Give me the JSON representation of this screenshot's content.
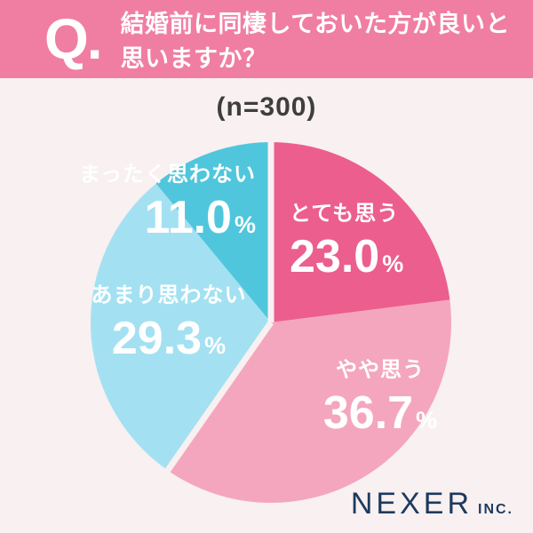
{
  "header": {
    "q_label": "Q.",
    "question": "結婚前に同棲しておいた方が良いと思いますか？",
    "bg_color": "#F07EA3",
    "text_color": "#FFFFFF"
  },
  "sample_label": "(n=300)",
  "chart_data": {
    "type": "pie",
    "title": "結婚前に同棲しておいた方が良いと思いますか？",
    "sample_size": 300,
    "start_angle_deg": 0,
    "direction": "clockwise",
    "divider_color": "#F8F0F1",
    "label_text_color": "#FFFFFF",
    "segments": [
      {
        "label": "とても思う",
        "value": 23.0,
        "value_display": "23.0",
        "unit": "%",
        "color": "#EC5E8D",
        "divider_before": true
      },
      {
        "label": "やや思う",
        "value": 36.7,
        "value_display": "36.7",
        "unit": "%",
        "color": "#F4A6BE",
        "divider_before": false
      },
      {
        "label": "あまり思わない",
        "value": 29.3,
        "value_display": "29.3",
        "unit": "%",
        "color": "#A3E1F2",
        "divider_before": true
      },
      {
        "label": "まったく思わない",
        "value": 11.0,
        "value_display": "11.0",
        "unit": "%",
        "color": "#4FC6DC",
        "divider_before": false
      }
    ]
  },
  "footer": {
    "brand": "NEXER",
    "brand_suffix": "INC.",
    "color": "#1C3A5E"
  },
  "colors": {
    "page_bg": "#F8F0F1",
    "n_label": "#3E3E3E"
  }
}
